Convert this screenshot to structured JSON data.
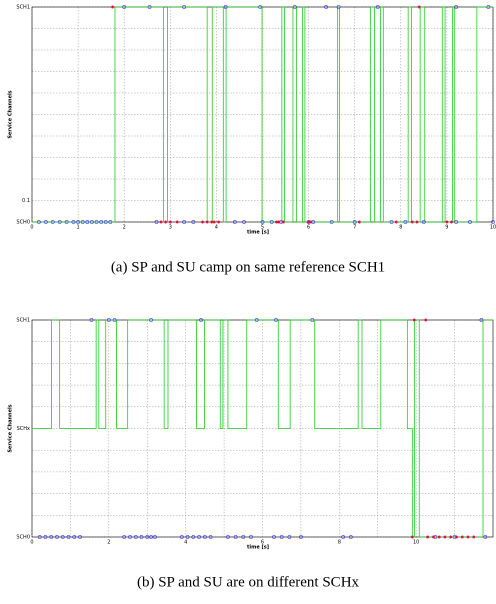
{
  "chart_data": [
    {
      "type": "step",
      "caption": "(a) SP and SU camp on same reference SCH1",
      "ylabel": "Service Channels",
      "xlabel": "time [s]",
      "xlim": [
        0,
        10
      ],
      "ylim": [
        0,
        1
      ],
      "grid": true,
      "xticks": [
        0,
        1,
        2,
        3,
        4,
        5,
        6,
        7,
        8,
        9,
        10
      ],
      "minor_xticks": [],
      "yticks": [
        {
          "value": 0,
          "label": "SCH0"
        },
        0.1,
        {
          "value": 1,
          "label": "SCH1"
        }
      ],
      "minor_yticks": [
        0.2,
        0.3,
        0.4,
        0.5,
        0.6,
        0.7,
        0.8,
        0.9
      ],
      "series": [
        {
          "kind": "line",
          "color": "#22cc22",
          "x": [
            0,
            1.8,
            2.85,
            2.94,
            3.8,
            3.91,
            4.15,
            4.21,
            4.99,
            5.42,
            5.48,
            5.66,
            5.74,
            5.87,
            5.92,
            6.63,
            6.67,
            7.34,
            7.43,
            7.56,
            7.62,
            8.16,
            8.23,
            8.42,
            8.52,
            8.9,
            8.96,
            9.12,
            9.16,
            9.65,
            10
          ],
          "values": [
            0,
            1,
            0,
            1,
            0,
            1,
            0,
            1,
            0,
            1,
            0,
            1,
            0,
            1,
            0,
            1,
            0,
            1,
            0,
            1,
            0,
            1,
            0,
            1,
            0,
            1,
            0,
            1,
            0,
            1,
            1
          ]
        },
        {
          "kind": "marker",
          "marker": "o",
          "color": "#3333ff",
          "x": [
            2.0,
            2.55,
            3.3,
            4.2,
            4.95,
            5.7,
            6.38,
            6.65,
            7.5,
            9.2,
            9.9,
            0.15,
            0.3,
            0.45,
            0.6,
            0.75,
            0.9,
            1.0,
            1.1,
            1.2,
            1.3,
            1.4,
            1.5,
            1.6,
            1.7,
            2.7,
            3.3,
            3.5,
            4.4,
            4.6,
            5.0,
            5.2,
            5.4,
            6.0,
            6.1,
            6.5,
            7.0,
            7.8,
            8.1,
            8.5,
            9.2,
            9.5,
            10.0
          ],
          "values": [
            1,
            1,
            1,
            1,
            1,
            1,
            1,
            1,
            1,
            1,
            1,
            0,
            0,
            0,
            0,
            0,
            0,
            0,
            0,
            0,
            0,
            0,
            0,
            0,
            0,
            0,
            0,
            0,
            0,
            0,
            0,
            0,
            0,
            0,
            0,
            0,
            0,
            0,
            0,
            0,
            0,
            0,
            0
          ]
        },
        {
          "kind": "marker",
          "marker": "*",
          "color": "#dd1144",
          "x": [
            1.75,
            8.4,
            2.8,
            2.9,
            3.0,
            3.15,
            3.7,
            3.8,
            3.9,
            3.95,
            4.05,
            5.3,
            5.35,
            5.45,
            6.0,
            6.05,
            7.1,
            7.9,
            8.25,
            8.35,
            9.0,
            9.1
          ],
          "values": [
            1,
            1,
            0,
            0,
            0,
            0,
            0,
            0,
            0,
            0,
            0,
            0,
            0,
            0,
            0,
            0,
            0,
            0,
            0,
            0,
            0,
            0
          ]
        }
      ]
    },
    {
      "type": "step",
      "caption": "(b) SP and SU are on different SCHx",
      "ylabel": "Service Channels",
      "xlabel": "time [s]",
      "xlim": [
        0,
        12
      ],
      "ylim": [
        0,
        1
      ],
      "grid": true,
      "xticks": [
        0,
        2,
        4,
        6,
        8,
        10
      ],
      "minor_xticks": [
        1,
        3,
        5,
        7,
        9,
        11
      ],
      "yticks": [
        {
          "value": 0,
          "label": "SCH0"
        },
        {
          "value": 0.5,
          "label": "SCHx"
        },
        {
          "value": 1,
          "label": "SCH1"
        }
      ],
      "minor_yticks": [
        0.1,
        0.2,
        0.3,
        0.4,
        0.6,
        0.7,
        0.8,
        0.9
      ],
      "series": [
        {
          "kind": "line",
          "color": "#22cc22",
          "x": [
            0,
            0.51,
            0.72,
            1.67,
            1.74,
            1.92,
            2.2,
            2.49,
            3.44,
            3.54,
            4.28,
            4.49,
            4.9,
            4.97,
            5.1,
            5.59,
            6.41,
            6.72,
            7.36,
            8.49,
            8.59,
            9.08,
            9.77,
            9.9,
            9.96,
            10.08,
            11.74,
            12
          ],
          "values": [
            0.5,
            1,
            0.5,
            1,
            0.5,
            1,
            0.5,
            1,
            0.5,
            1,
            0.5,
            1,
            0.5,
            1,
            0.5,
            1,
            0.5,
            1,
            0.5,
            1,
            0.5,
            1,
            0.5,
            0,
            1,
            0,
            1,
            1
          ]
        },
        {
          "kind": "marker",
          "marker": "o",
          "color": "#3333ff",
          "x": [
            1.55,
            2.0,
            2.15,
            3.1,
            4.4,
            5.85,
            6.35,
            7.3,
            11.7,
            0.2,
            0.35,
            0.5,
            0.65,
            0.8,
            0.95,
            1.1,
            1.25,
            2.4,
            2.55,
            2.7,
            2.85,
            3.0,
            3.1,
            3.2,
            3.9,
            4.05,
            4.2,
            4.35,
            4.5,
            4.65,
            5.1,
            5.3,
            5.5,
            5.7,
            6.3,
            6.5,
            6.7,
            7.0,
            8.1,
            8.3,
            10.5,
            11.0,
            11.8
          ],
          "values": [
            1,
            1,
            1,
            1,
            1,
            1,
            1,
            1,
            1,
            0,
            0,
            0,
            0,
            0,
            0,
            0,
            0,
            0,
            0,
            0,
            0,
            0,
            0,
            0,
            0,
            0,
            0,
            0,
            0,
            0,
            0,
            0,
            0,
            0,
            0,
            0,
            0,
            0,
            0,
            0,
            0,
            0,
            0
          ]
        },
        {
          "kind": "marker",
          "marker": "*",
          "color": "#dd1144",
          "x": [
            9.95,
            10.25,
            9.9,
            10.3,
            10.45,
            10.6,
            10.75,
            10.9,
            11.05,
            11.2,
            11.35,
            11.5
          ],
          "values": [
            1,
            1,
            0,
            0,
            0,
            0,
            0,
            0,
            0,
            0,
            0,
            0
          ]
        }
      ]
    }
  ]
}
